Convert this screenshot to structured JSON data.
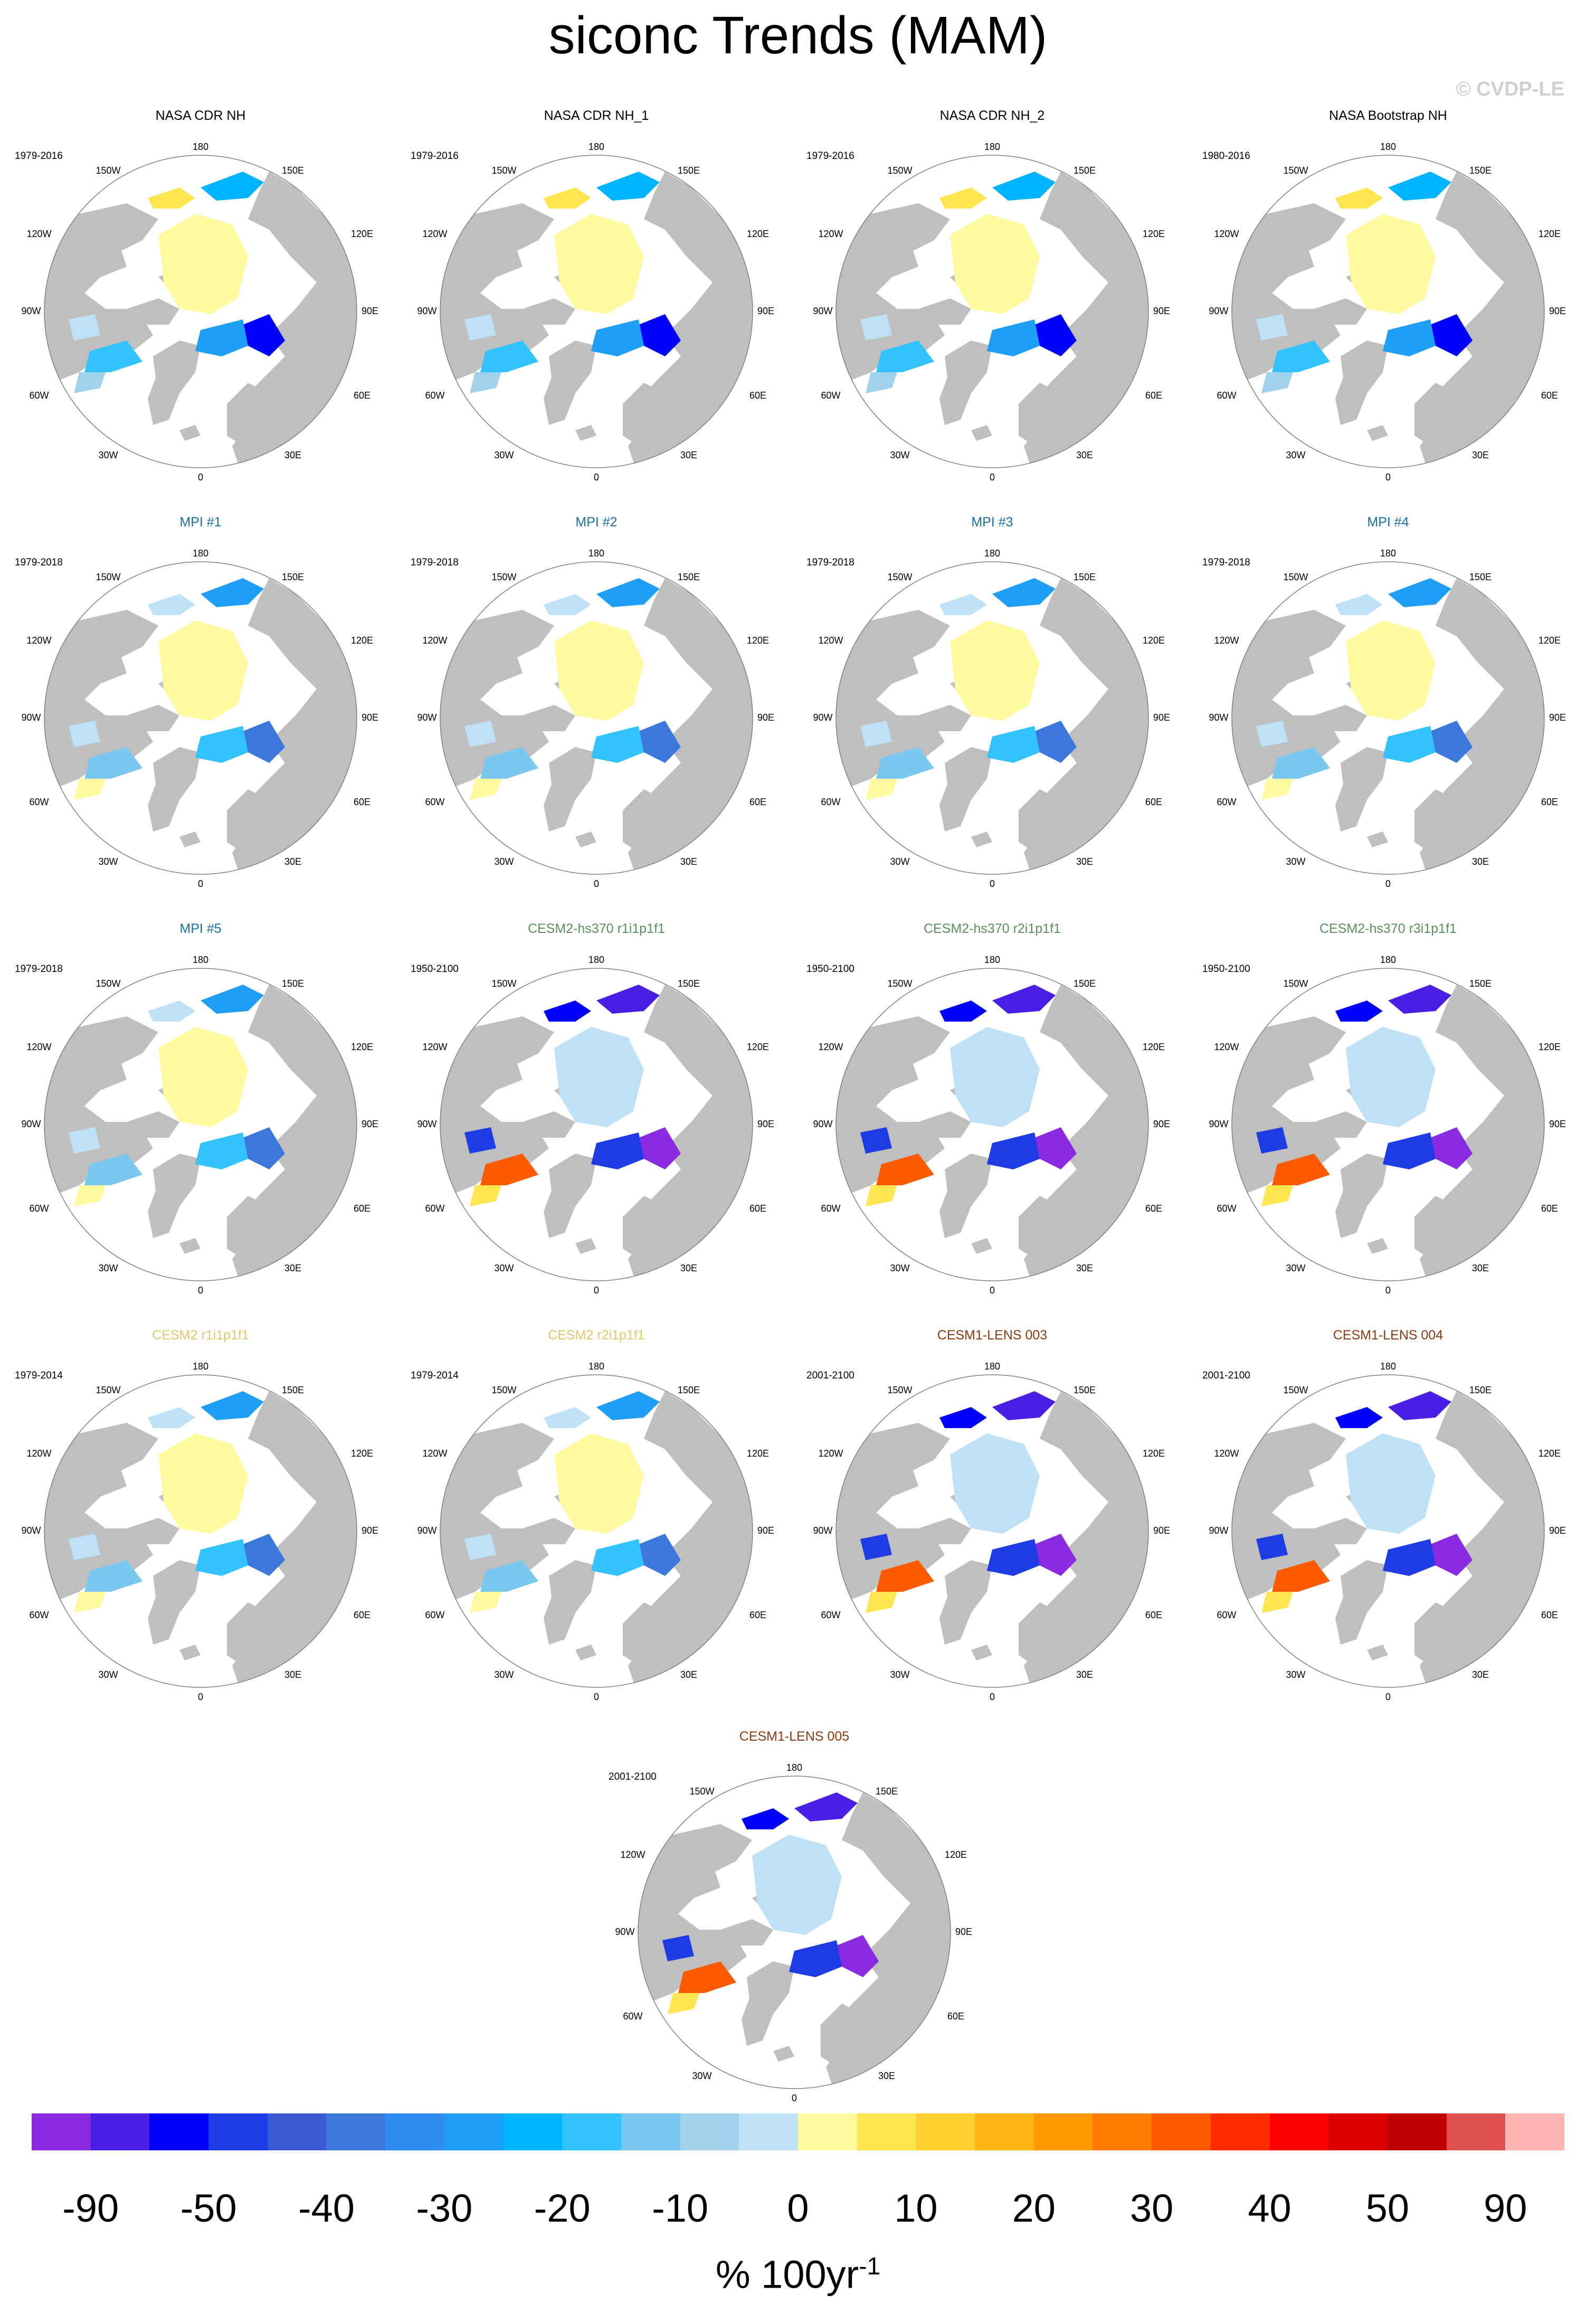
{
  "title": "siconc Trends (MAM)",
  "credit": "© CVDP-LE",
  "colors": {
    "land": "#bfbfbf",
    "outline": "#808080",
    "title_observations": "#000000",
    "title_mpi": "#1a6fa0",
    "title_cesm2_hs370": "#5a8f5a",
    "title_cesm2": "#e0c867",
    "title_cesm1_lens": "#8b3a10"
  },
  "map_labels": {
    "lon_180": "180",
    "lon_150w": "150W",
    "lon_150e": "150E",
    "lon_120w": "120W",
    "lon_120e": "120E",
    "lon_90w": "90W",
    "lon_90e": "90E",
    "lon_60w": "60W",
    "lon_60e": "60E",
    "lon_30w": "30W",
    "lon_30e": "30E",
    "lon_0": "0"
  },
  "panels": [
    {
      "title": "NASA CDR NH",
      "years": "1979-2016",
      "group": "observations",
      "pattern": "obs"
    },
    {
      "title": "NASA CDR NH_1",
      "years": "1979-2016",
      "group": "observations",
      "pattern": "obs"
    },
    {
      "title": "NASA CDR NH_2",
      "years": "1979-2016",
      "group": "observations",
      "pattern": "obs"
    },
    {
      "title": "NASA Bootstrap NH",
      "years": "1980-2016",
      "group": "observations",
      "pattern": "obs"
    },
    {
      "title": "MPI #1",
      "years": "1979-2018",
      "group": "mpi",
      "pattern": "mpi"
    },
    {
      "title": "MPI #2",
      "years": "1979-2018",
      "group": "mpi",
      "pattern": "mpi"
    },
    {
      "title": "MPI #3",
      "years": "1979-2018",
      "group": "mpi",
      "pattern": "mpi"
    },
    {
      "title": "MPI #4",
      "years": "1979-2018",
      "group": "mpi",
      "pattern": "mpi"
    },
    {
      "title": "MPI #5",
      "years": "1979-2018",
      "group": "mpi",
      "pattern": "mpi"
    },
    {
      "title": "CESM2-hs370 r1i1p1f1",
      "years": "1950-2100",
      "group": "cesm2_hs370",
      "pattern": "future"
    },
    {
      "title": "CESM2-hs370 r2i1p1f1",
      "years": "1950-2100",
      "group": "cesm2_hs370",
      "pattern": "future"
    },
    {
      "title": "CESM2-hs370 r3i1p1f1",
      "years": "1950-2100",
      "group": "cesm2_hs370",
      "pattern": "future"
    },
    {
      "title": "CESM2 r1i1p1f1",
      "years": "1979-2014",
      "group": "cesm2",
      "pattern": "mpi"
    },
    {
      "title": "CESM2 r2i1p1f1",
      "years": "1979-2014",
      "group": "cesm2",
      "pattern": "mpi"
    },
    {
      "title": "CESM1-LENS 003",
      "years": "2001-2100",
      "group": "cesm1_lens",
      "pattern": "future"
    },
    {
      "title": "CESM1-LENS 004",
      "years": "2001-2100",
      "group": "cesm1_lens",
      "pattern": "future"
    },
    {
      "title": "CESM1-LENS 005",
      "years": "2001-2100",
      "group": "cesm1_lens",
      "pattern": "future"
    }
  ],
  "colorbar": {
    "colors": [
      "#8a2be2",
      "#4b1ee6",
      "#0000ff",
      "#1e3ce6",
      "#3c5ad2",
      "#3c78dc",
      "#2d8cf0",
      "#1e9ef5",
      "#00b4ff",
      "#32c3ff",
      "#78c8f0",
      "#a0d2eb",
      "#bee1f5",
      "#fffaa0",
      "#ffe650",
      "#ffd232",
      "#ffb414",
      "#ff9b00",
      "#ff7d00",
      "#ff5a00",
      "#ff2d00",
      "#ff0000",
      "#dc0000",
      "#be0000",
      "#e05050",
      "#ffb4b4"
    ],
    "tick_labels": [
      "-90",
      "-50",
      "-40",
      "-30",
      "-20",
      "-10",
      "0",
      "10",
      "20",
      "30",
      "40",
      "50",
      "90"
    ],
    "units": "% 100yr",
    "units_exponent": "-1"
  }
}
